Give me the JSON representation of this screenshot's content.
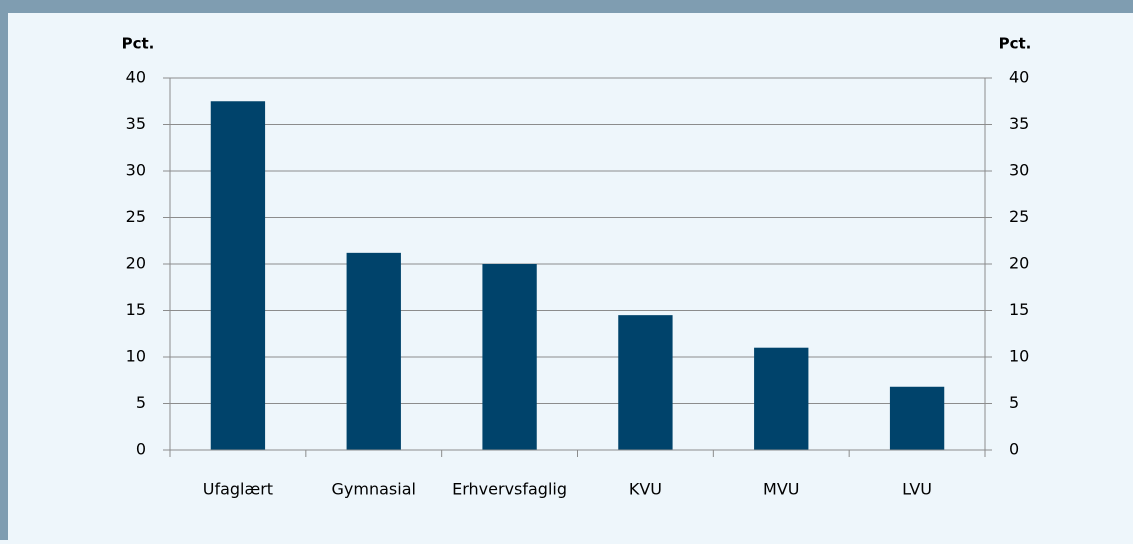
{
  "chart_data": {
    "type": "bar",
    "y_label": "Pct.",
    "y2_label": "Pct.",
    "categories": [
      "Ufaglært",
      "Gymnasial",
      "Erhvervsfaglig",
      "KVU",
      "MVU",
      "LVU"
    ],
    "values": [
      37.5,
      21.2,
      20,
      14.5,
      11,
      6.8
    ],
    "color": "#00436b",
    "ylim": [
      0,
      40
    ],
    "yticks": [
      0,
      5,
      10,
      15,
      20,
      25,
      30,
      35,
      40
    ],
    "y2lim": [
      0,
      40
    ],
    "y2ticks": [
      0,
      5,
      10,
      15,
      20,
      25,
      30,
      35,
      40
    ],
    "grid": true
  }
}
